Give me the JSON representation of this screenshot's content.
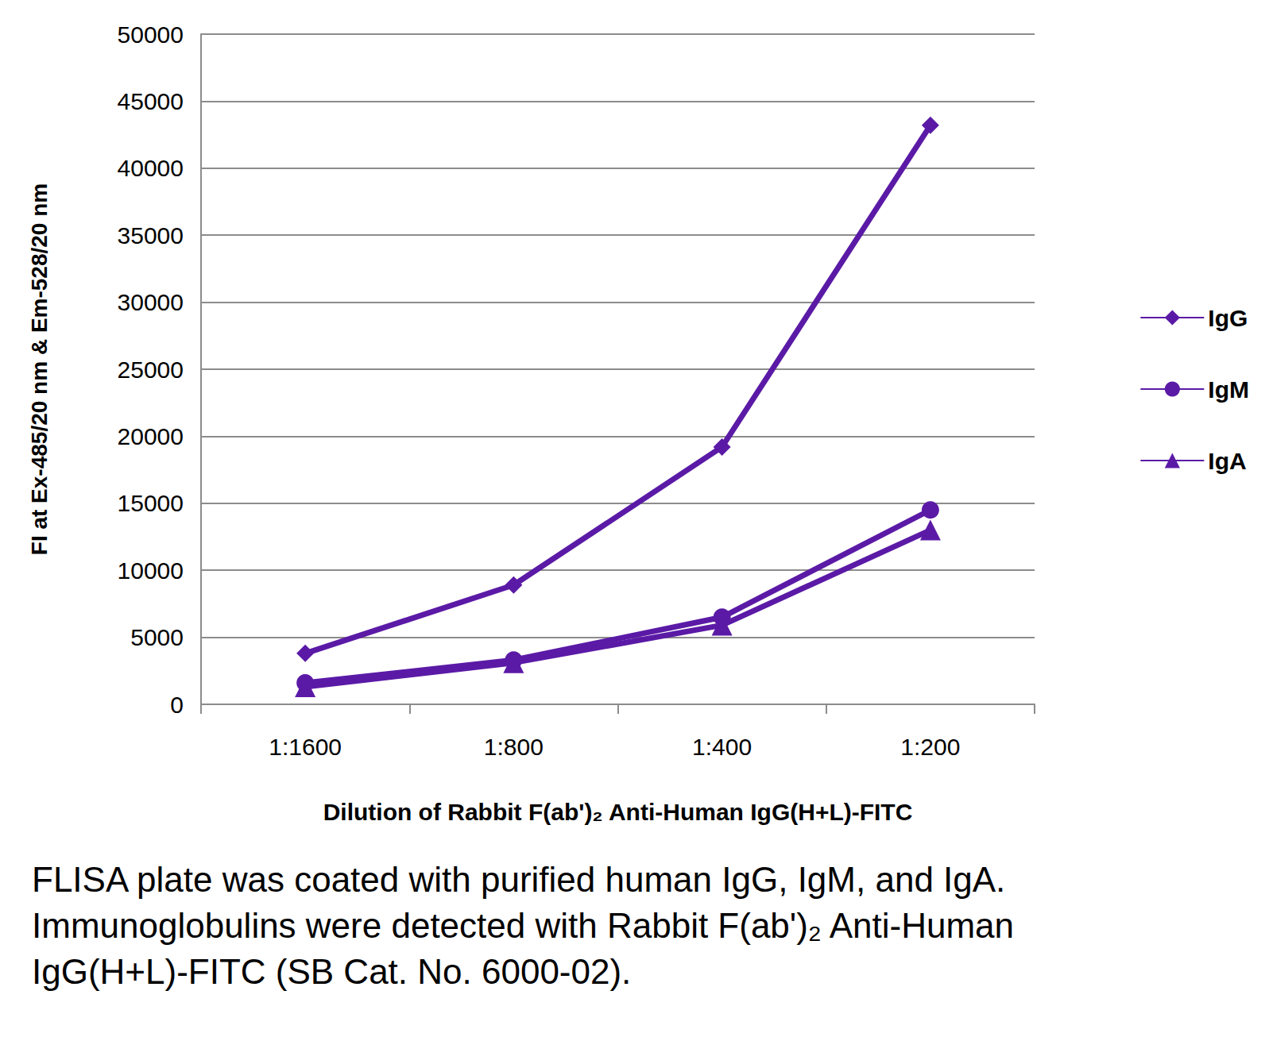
{
  "chart_data": {
    "type": "line",
    "x_label": "Dilution of Rabbit F(ab')₂ Anti-Human IgG(H+L)-FITC",
    "y_label": "FI at Ex-485/20 nm & Em-528/20 nm",
    "caption": "FLISA plate was coated with purified human IgG, IgM, and IgA. Immunoglobulins were detected with Rabbit F(ab')₂ Anti-Human IgG(H+L)-FITC (SB Cat. No. 6000-02).",
    "categories": [
      "1:1600",
      "1:800",
      "1:400",
      "1:200"
    ],
    "series": [
      {
        "name": "IgG",
        "color": "#5b1aa6",
        "marker": "diamond",
        "values": [
          3800,
          8900,
          19200,
          43200
        ]
      },
      {
        "name": "IgM",
        "color": "#5b1aa6",
        "marker": "circle",
        "values": [
          1600,
          3300,
          6500,
          14500
        ]
      },
      {
        "name": "IgA",
        "color": "#5b1aa6",
        "marker": "triangle",
        "values": [
          1300,
          3100,
          5900,
          13000
        ]
      }
    ],
    "ylim": [
      0,
      50000
    ],
    "yticks": [
      0,
      5000,
      10000,
      15000,
      20000,
      25000,
      30000,
      35000,
      40000,
      45000,
      50000
    ],
    "grid": true,
    "legend": "right"
  }
}
